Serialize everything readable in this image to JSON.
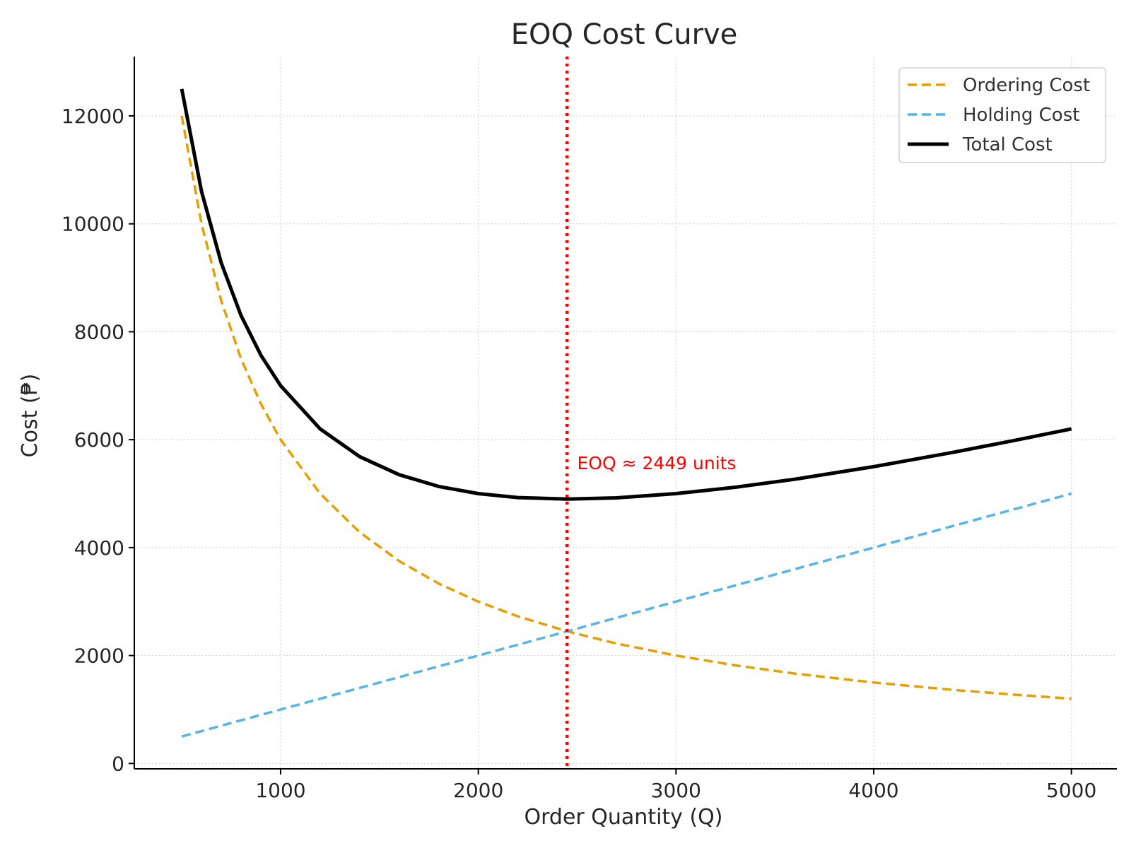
{
  "chart_data": {
    "type": "line",
    "title": "EOQ Cost Curve",
    "xlabel": "Order Quantity (Q)",
    "ylabel": "Cost (₱)",
    "xlim": [
      260,
      5230
    ],
    "ylim": [
      -100,
      13100
    ],
    "xticks": [
      1000,
      2000,
      3000,
      4000,
      5000
    ],
    "yticks": [
      0,
      2000,
      4000,
      6000,
      8000,
      10000,
      12000
    ],
    "grid": true,
    "legend_position": "top-right",
    "series": [
      {
        "name": "Ordering Cost",
        "color": "#E69F00",
        "style": "dashed",
        "x": [
          500,
          600,
          700,
          800,
          900,
          1000,
          1200,
          1400,
          1600,
          1800,
          2000,
          2200,
          2449,
          2700,
          3000,
          3300,
          3600,
          4000,
          4400,
          4700,
          5000
        ],
        "values": [
          12000,
          10000,
          8571,
          7500,
          6667,
          6000,
          5000,
          4286,
          3750,
          3333,
          3000,
          2727,
          2449,
          2222,
          2000,
          1818,
          1667,
          1500,
          1364,
          1277,
          1200
        ]
      },
      {
        "name": "Holding Cost",
        "color": "#56B4E9",
        "style": "dashed",
        "x": [
          500,
          5000
        ],
        "values": [
          500,
          5000
        ]
      },
      {
        "name": "Total Cost",
        "color": "#000000",
        "style": "solid",
        "x": [
          500,
          600,
          700,
          800,
          900,
          1000,
          1200,
          1400,
          1600,
          1800,
          2000,
          2200,
          2449,
          2700,
          3000,
          3300,
          3600,
          4000,
          4400,
          4700,
          5000
        ],
        "values": [
          12500,
          10600,
          9271,
          8300,
          7567,
          7000,
          6200,
          5686,
          5350,
          5133,
          5000,
          4927,
          4898,
          4922,
          5000,
          5118,
          5267,
          5500,
          5764,
          5977,
          6200
        ]
      }
    ],
    "eoq_line": {
      "x": 2449,
      "color": "#FF0000",
      "style": "dotted"
    },
    "annotation": {
      "text": "EOQ ≈ 2449 units",
      "x": 2500,
      "y": 5450,
      "color": "#FF0000"
    }
  }
}
